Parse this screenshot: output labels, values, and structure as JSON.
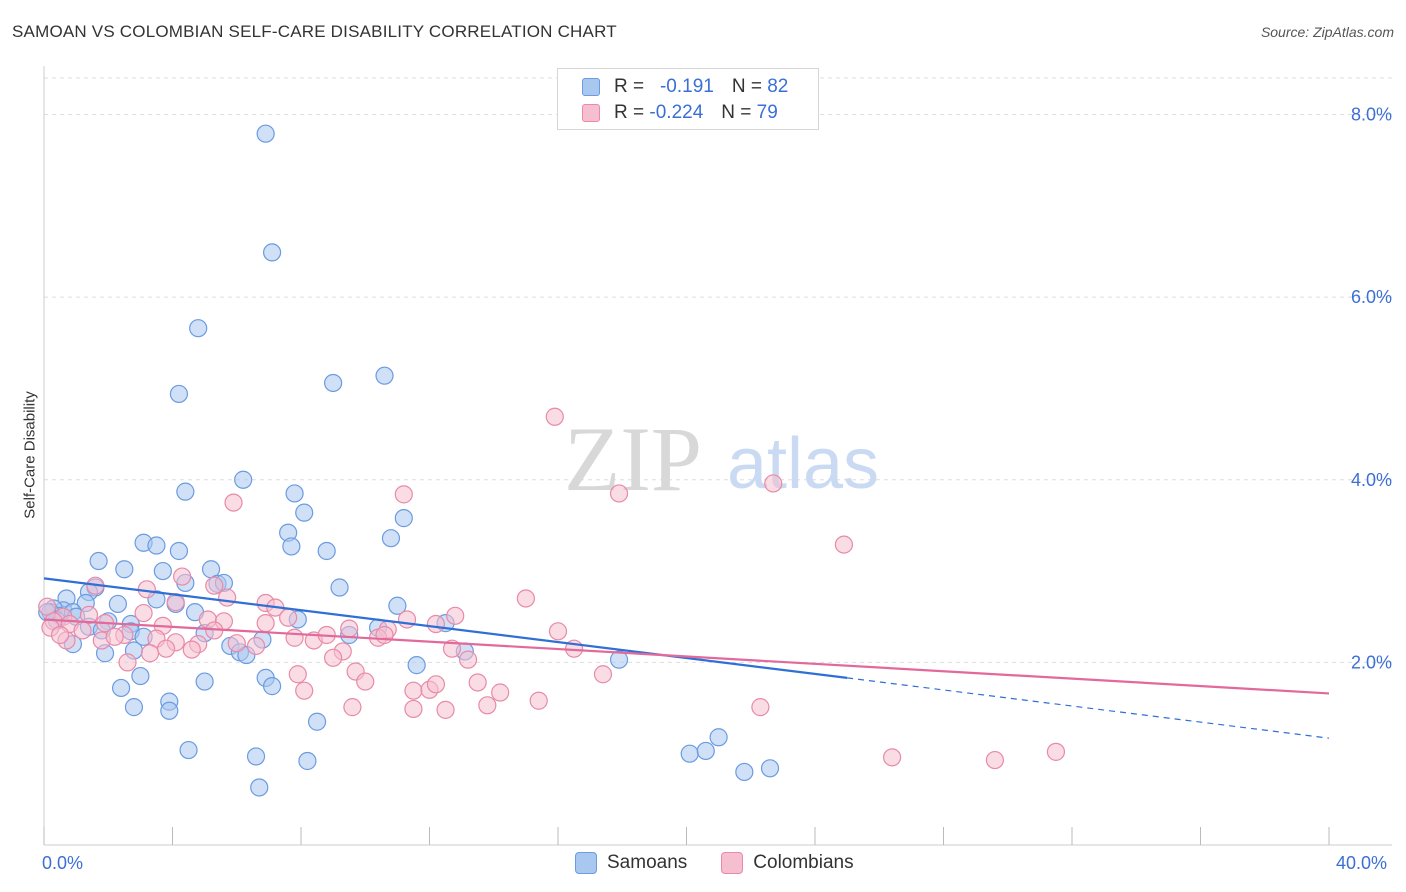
{
  "title": "SAMOAN VS COLOMBIAN SELF-CARE DISABILITY CORRELATION CHART",
  "source": "Source: ZipAtlas.com",
  "watermark": {
    "zip": "ZIP",
    "atlas": "atlas"
  },
  "legend_top": [
    {
      "r_label": "R =",
      "r_value": "-0.191",
      "n_label": "N =",
      "n_value": "82"
    },
    {
      "r_label": "R =",
      "r_value": "-0.224",
      "n_label": "N =",
      "n_value": "79"
    }
  ],
  "legend_bottom": [
    "Samoans",
    "Colombians"
  ],
  "colors": {
    "samoans_fill": "#a9c8f0",
    "samoans_stroke": "#6b9be0",
    "samoans_line": "#2f6fd6",
    "colombians_fill": "#f6bfd0",
    "colombians_stroke": "#e88aa8",
    "colombians_line": "#e2699a",
    "tick_text": "#3b6fd6",
    "grid": "#dddddd"
  },
  "chart_data": {
    "type": "scatter",
    "title": "SAMOAN VS COLOMBIAN SELF-CARE DISABILITY CORRELATION CHART",
    "xlabel": "",
    "ylabel": "Self-Care Disability",
    "xlim": [
      0,
      40
    ],
    "ylim": [
      0,
      8.4
    ],
    "x_tick_labels": [
      "0.0%",
      "40.0%"
    ],
    "y_ticks": [
      2,
      4,
      6,
      8
    ],
    "y_tick_labels": [
      "2.0%",
      "4.0%",
      "6.0%",
      "8.0%"
    ],
    "grid": true,
    "legend_placement": "top-center",
    "series": [
      {
        "name": "Samoans",
        "r": -0.191,
        "n": 82,
        "trend": {
          "x0": 0,
          "y0": 2.92,
          "x1": 25,
          "y1": 1.83,
          "dashed_to_x": 40,
          "dashed_to_y": 1.17
        },
        "points": [
          [
            6.9,
            7.79
          ],
          [
            7.1,
            6.49
          ],
          [
            4.8,
            5.66
          ],
          [
            4.2,
            4.94
          ],
          [
            9.0,
            5.06
          ],
          [
            10.6,
            5.14
          ],
          [
            4.4,
            3.87
          ],
          [
            6.2,
            4.0
          ],
          [
            7.8,
            3.85
          ],
          [
            8.1,
            3.64
          ],
          [
            11.2,
            3.58
          ],
          [
            7.6,
            3.42
          ],
          [
            10.8,
            3.36
          ],
          [
            3.1,
            3.31
          ],
          [
            3.5,
            3.28
          ],
          [
            4.2,
            3.22
          ],
          [
            7.7,
            3.27
          ],
          [
            8.8,
            3.22
          ],
          [
            1.7,
            3.11
          ],
          [
            2.5,
            3.02
          ],
          [
            3.7,
            3.0
          ],
          [
            5.2,
            3.02
          ],
          [
            5.4,
            2.86
          ],
          [
            5.6,
            2.87
          ],
          [
            4.4,
            2.87
          ],
          [
            3.5,
            2.69
          ],
          [
            1.6,
            2.82
          ],
          [
            1.4,
            2.77
          ],
          [
            0.7,
            2.7
          ],
          [
            1.3,
            2.65
          ],
          [
            2.3,
            2.64
          ],
          [
            4.1,
            2.64
          ],
          [
            9.2,
            2.82
          ],
          [
            11.0,
            2.62
          ],
          [
            0.6,
            2.57
          ],
          [
            0.3,
            2.59
          ],
          [
            0.5,
            2.51
          ],
          [
            0.2,
            2.55
          ],
          [
            0.9,
            2.55
          ],
          [
            0.4,
            2.46
          ],
          [
            2.7,
            2.42
          ],
          [
            1.4,
            2.39
          ],
          [
            2.7,
            2.34
          ],
          [
            3.1,
            2.28
          ],
          [
            5.0,
            2.32
          ],
          [
            7.9,
            2.47
          ],
          [
            10.4,
            2.38
          ],
          [
            12.5,
            2.43
          ],
          [
            0.9,
            2.2
          ],
          [
            1.9,
            2.1
          ],
          [
            2.8,
            2.13
          ],
          [
            5.8,
            2.18
          ],
          [
            6.1,
            2.11
          ],
          [
            6.3,
            2.08
          ],
          [
            13.1,
            2.12
          ],
          [
            11.6,
            1.97
          ],
          [
            17.9,
            2.03
          ],
          [
            3.0,
            1.85
          ],
          [
            2.4,
            1.72
          ],
          [
            5.0,
            1.79
          ],
          [
            6.9,
            1.83
          ],
          [
            7.1,
            1.74
          ],
          [
            2.8,
            1.51
          ],
          [
            3.9,
            1.57
          ],
          [
            3.9,
            1.47
          ],
          [
            8.5,
            1.35
          ],
          [
            4.5,
            1.04
          ],
          [
            6.6,
            0.97
          ],
          [
            8.2,
            0.92
          ],
          [
            6.7,
            0.63
          ],
          [
            20.1,
            1.0
          ],
          [
            20.6,
            1.03
          ],
          [
            21.0,
            1.18
          ],
          [
            21.8,
            0.8
          ],
          [
            22.6,
            0.84
          ],
          [
            0.1,
            2.55
          ],
          [
            1.0,
            2.5
          ],
          [
            2.0,
            2.45
          ],
          [
            4.7,
            2.55
          ],
          [
            6.8,
            2.25
          ],
          [
            9.5,
            2.3
          ],
          [
            1.8,
            2.35
          ]
        ]
      },
      {
        "name": "Colombians",
        "r": -0.224,
        "n": 79,
        "trend": {
          "x0": 0,
          "y0": 2.47,
          "x1": 40,
          "y1": 1.66
        },
        "points": [
          [
            15.9,
            4.69
          ],
          [
            22.7,
            3.96
          ],
          [
            11.2,
            3.84
          ],
          [
            17.9,
            3.85
          ],
          [
            5.9,
            3.75
          ],
          [
            24.9,
            3.29
          ],
          [
            4.3,
            2.94
          ],
          [
            5.3,
            2.84
          ],
          [
            3.2,
            2.8
          ],
          [
            1.6,
            2.84
          ],
          [
            5.7,
            2.71
          ],
          [
            4.1,
            2.66
          ],
          [
            6.9,
            2.65
          ],
          [
            7.2,
            2.6
          ],
          [
            3.1,
            2.54
          ],
          [
            1.4,
            2.52
          ],
          [
            0.6,
            2.5
          ],
          [
            0.1,
            2.61
          ],
          [
            0.3,
            2.45
          ],
          [
            0.8,
            2.42
          ],
          [
            1.9,
            2.43
          ],
          [
            3.7,
            2.4
          ],
          [
            5.1,
            2.47
          ],
          [
            5.6,
            2.45
          ],
          [
            7.6,
            2.49
          ],
          [
            6.9,
            2.43
          ],
          [
            9.5,
            2.37
          ],
          [
            10.7,
            2.36
          ],
          [
            12.8,
            2.51
          ],
          [
            15.0,
            2.7
          ],
          [
            16.0,
            2.34
          ],
          [
            11.3,
            2.47
          ],
          [
            0.7,
            2.24
          ],
          [
            1.8,
            2.24
          ],
          [
            2.5,
            2.3
          ],
          [
            3.5,
            2.26
          ],
          [
            4.1,
            2.22
          ],
          [
            4.8,
            2.2
          ],
          [
            6.0,
            2.21
          ],
          [
            6.6,
            2.18
          ],
          [
            7.8,
            2.27
          ],
          [
            8.4,
            2.24
          ],
          [
            9.3,
            2.12
          ],
          [
            10.4,
            2.27
          ],
          [
            10.6,
            2.3
          ],
          [
            12.7,
            2.15
          ],
          [
            13.2,
            2.03
          ],
          [
            16.5,
            2.15
          ],
          [
            2.6,
            2.0
          ],
          [
            3.3,
            2.1
          ],
          [
            4.6,
            2.14
          ],
          [
            9.0,
            2.05
          ],
          [
            7.9,
            1.87
          ],
          [
            8.1,
            1.69
          ],
          [
            9.7,
            1.9
          ],
          [
            10.0,
            1.79
          ],
          [
            11.5,
            1.69
          ],
          [
            12.0,
            1.7
          ],
          [
            12.2,
            1.76
          ],
          [
            13.5,
            1.78
          ],
          [
            14.2,
            1.67
          ],
          [
            17.4,
            1.87
          ],
          [
            9.6,
            1.51
          ],
          [
            11.5,
            1.49
          ],
          [
            12.5,
            1.48
          ],
          [
            13.8,
            1.53
          ],
          [
            15.4,
            1.58
          ],
          [
            22.3,
            1.51
          ],
          [
            26.4,
            0.96
          ],
          [
            29.6,
            0.93
          ],
          [
            31.5,
            1.02
          ],
          [
            0.2,
            2.38
          ],
          [
            1.2,
            2.35
          ],
          [
            2.2,
            2.28
          ],
          [
            5.3,
            2.35
          ],
          [
            8.8,
            2.3
          ],
          [
            12.2,
            2.42
          ],
          [
            0.5,
            2.3
          ],
          [
            3.8,
            2.15
          ]
        ]
      }
    ]
  }
}
